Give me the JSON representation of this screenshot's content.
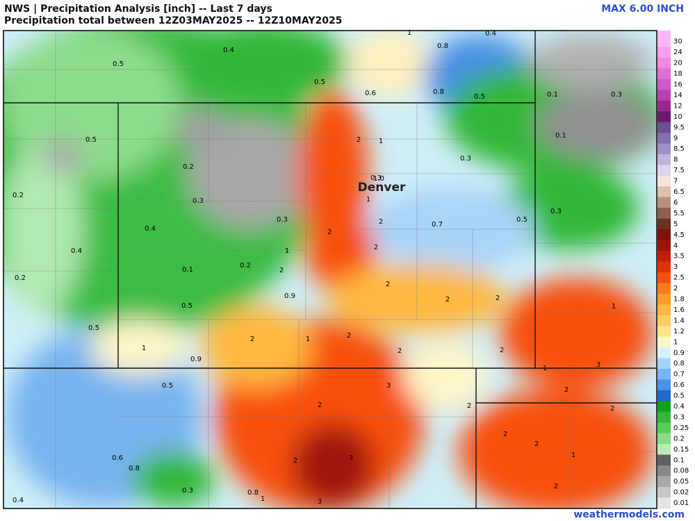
{
  "header": {
    "title": "NWS | Precipitation Analysis [inch] -- Last 7 days",
    "subtitle": "Precipitation total between 12Z03MAY2025 -- 12Z10MAY2025",
    "max_label": "MAX 6.00 INCH"
  },
  "footer": "weathermodels.com",
  "city": "Denver",
  "map_labels": [
    "1",
    "0.4",
    "0.8",
    "0.4",
    "0.5",
    "0.5",
    "0.6",
    "0.8",
    "0.5",
    "0.1",
    "0.3",
    "0.5",
    "1",
    "2",
    "0.1",
    "0.3",
    "0.2",
    "0.3",
    "0.4",
    "1.0",
    "0.3",
    "1",
    "2",
    "0.7",
    "0.3",
    "0.5",
    "0.2",
    "0.4",
    "2",
    "2",
    "0.2",
    "0.1",
    "0.2",
    "2",
    "1",
    "0.3",
    "0.9",
    "0.5",
    "2",
    "2",
    "0.5",
    "1",
    "2",
    "1",
    "2",
    "1",
    "0.9",
    "2",
    "2",
    "3",
    "1",
    "3",
    "0.5",
    "2",
    "2",
    "2",
    "0.6",
    "0.8",
    "2",
    "2",
    "1",
    "2",
    "2",
    "0.4",
    "0.3",
    "0.8",
    "1",
    "3",
    "2",
    "3",
    "2"
  ],
  "legend": [
    {
      "label": "30",
      "color": "#ffb8f4"
    },
    {
      "label": "24",
      "color": "#f8a0ec"
    },
    {
      "label": "20",
      "color": "#f088e4"
    },
    {
      "label": "18",
      "color": "#e070d8"
    },
    {
      "label": "16",
      "color": "#d058c8"
    },
    {
      "label": "14",
      "color": "#b840b0"
    },
    {
      "label": "12",
      "color": "#9a2894"
    },
    {
      "label": "10",
      "color": "#701870"
    },
    {
      "label": "9.5",
      "color": "#6a5090"
    },
    {
      "label": "9",
      "color": "#8070b0"
    },
    {
      "label": "8.5",
      "color": "#a090c8"
    },
    {
      "label": "8",
      "color": "#c0b4dc"
    },
    {
      "label": "7.5",
      "color": "#dcd4ea"
    },
    {
      "label": "7",
      "color": "#f2e4e0"
    },
    {
      "label": "6.5",
      "color": "#dcc0b0"
    },
    {
      "label": "6",
      "color": "#b89080"
    },
    {
      "label": "5.5",
      "color": "#8c6050"
    },
    {
      "label": "5",
      "color": "#6a3020"
    },
    {
      "label": "4.5",
      "color": "#801008"
    },
    {
      "label": "4",
      "color": "#a01408"
    },
    {
      "label": "3.5",
      "color": "#c02008"
    },
    {
      "label": "3",
      "color": "#e03008"
    },
    {
      "label": "2.5",
      "color": "#f85010"
    },
    {
      "label": "2",
      "color": "#fc7a18"
    },
    {
      "label": "1.8",
      "color": "#fe9c28"
    },
    {
      "label": "1.6",
      "color": "#ffb840"
    },
    {
      "label": "1.4",
      "color": "#ffd060"
    },
    {
      "label": "1.2",
      "color": "#ffe48c"
    },
    {
      "label": "1",
      "color": "#fff6c8"
    },
    {
      "label": "0.9",
      "color": "#d8f0fc"
    },
    {
      "label": "0.8",
      "color": "#a8d4f8"
    },
    {
      "label": "0.7",
      "color": "#78b4f0"
    },
    {
      "label": "0.6",
      "color": "#4a90e4"
    },
    {
      "label": "0.5",
      "color": "#2068c8"
    },
    {
      "label": "0.4",
      "color": "#12a020"
    },
    {
      "label": "0.3",
      "color": "#30b83c"
    },
    {
      "label": "0.25",
      "color": "#58cc5c"
    },
    {
      "label": "0.2",
      "color": "#88dc88"
    },
    {
      "label": "0.15",
      "color": "#b8ecb4"
    },
    {
      "label": "0.1",
      "color": "#606060"
    },
    {
      "label": "0.08",
      "color": "#888888"
    },
    {
      "label": "0.05",
      "color": "#a8a8a8"
    },
    {
      "label": "0.02",
      "color": "#c8c8c8"
    },
    {
      "label": "0.01",
      "color": "#e4e4e4"
    }
  ]
}
